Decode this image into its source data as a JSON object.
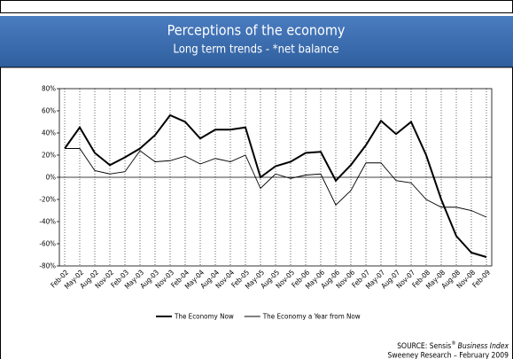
{
  "chart_data": {
    "type": "line",
    "title": "Perceptions of the economy",
    "subtitle": "Long term trends - *net balance",
    "categories": [
      "Feb-02",
      "May-02",
      "Aug-02",
      "Nov-02",
      "Feb-03",
      "May-03",
      "Aug-03",
      "Nov-03",
      "Feb-04",
      "May-04",
      "Aug-04",
      "Nov-04",
      "Feb-05",
      "May-05",
      "Aug-05",
      "Nov-05",
      "Feb-06",
      "May-06",
      "Aug-06",
      "Nov-06",
      "Feb-07",
      "May-07",
      "Aug-07",
      "Nov-07",
      "Feb-08",
      "May-08",
      "Aug-08",
      "Nov-08",
      "Feb-09"
    ],
    "series": [
      {
        "name": "The Economy Now",
        "color": "#000000",
        "values": [
          26,
          45,
          22,
          11,
          18,
          26,
          38,
          56,
          50,
          35,
          43,
          43,
          45,
          0,
          10,
          14,
          22,
          23,
          -3,
          11,
          29,
          51,
          39,
          50,
          20,
          -20,
          -53,
          -68,
          -72
        ]
      },
      {
        "name": "The Economy a Year from Now",
        "color": "#000000",
        "values": [
          26,
          26,
          6,
          3,
          5,
          24,
          14,
          15,
          19,
          12,
          17,
          14,
          20,
          -10,
          3,
          -1,
          2,
          3,
          -25,
          -12,
          13,
          13,
          -3,
          -5,
          -20,
          -27,
          -27,
          -30,
          -36
        ]
      }
    ],
    "ylim": [
      -80,
      80
    ],
    "yticks": [
      {
        "value": 80,
        "label": "80%"
      },
      {
        "value": 60,
        "label": "60%"
      },
      {
        "value": 40,
        "label": "40%"
      },
      {
        "value": 20,
        "label": "20%"
      },
      {
        "value": 0,
        "label": "0%"
      },
      {
        "value": -20,
        "label": "-20%"
      },
      {
        "value": -40,
        "label": "-40%"
      },
      {
        "value": -60,
        "label": "-60%"
      },
      {
        "value": -80,
        "label": "-80%"
      }
    ],
    "grid": true,
    "legend": "bottom"
  },
  "source": {
    "prefix": "SOURCE: Sensis",
    "mark": "®",
    "name": "Business Index",
    "line2": "Sweeney Research – February 2009"
  }
}
